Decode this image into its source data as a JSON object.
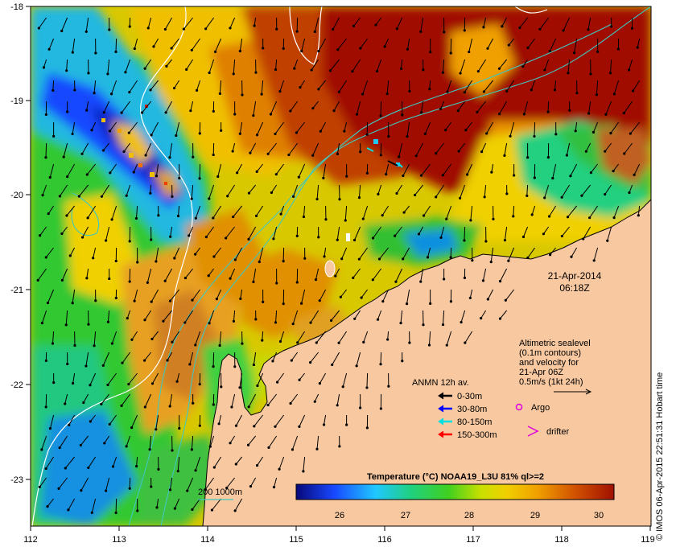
{
  "map": {
    "lon_ticks": [
      "112",
      "113",
      "114",
      "115",
      "116",
      "117",
      "118",
      "119"
    ],
    "lat_ticks": [
      "-18",
      "-19",
      "-20",
      "-21",
      "-22",
      "-23"
    ],
    "land_color": "#f8c8a0",
    "sea_palette": [
      "#08087a",
      "#1848ff",
      "#20c8ff",
      "#20d080",
      "#40d020",
      "#c8e000",
      "#f0d000",
      "#f0a000",
      "#d05000",
      "#a01000"
    ],
    "arrow_color": "#000000",
    "contour_sealevel_color": "#ffffff",
    "contour_bathy_color": "#40c8c0"
  },
  "timestamp": {
    "date": "21-Apr-2014",
    "time": "06:18Z"
  },
  "sealevel_note": {
    "lines": [
      "Altimetric sealevel",
      "(0.1m contours)",
      "and velocity for",
      "21-Apr 06Z",
      "0.5m/s (1kt 24h)"
    ]
  },
  "legend": {
    "title": "ANMN 12h av.",
    "items": [
      {
        "label": "0-30m",
        "color": "#000000"
      },
      {
        "label": "30-80m",
        "color": "#0000ff"
      },
      {
        "label": "80-150m",
        "color": "#00e0e0"
      },
      {
        "label": "150-300m",
        "color": "#ff0000"
      }
    ],
    "argo_label": "Argo",
    "argo_color": "#e000e0",
    "drifter_label": "drifter",
    "drifter_color": "#e000e0"
  },
  "bathy_key": {
    "label": "200  1000m"
  },
  "colorbar": {
    "title": "Temperature (°C) NOAA19_L3U 81% ql>=2",
    "ticks": [
      "26",
      "27",
      "28",
      "29",
      "30"
    ]
  },
  "credit": "© IMOS 06-Apr-2015 22:51:31 Hobart time"
}
